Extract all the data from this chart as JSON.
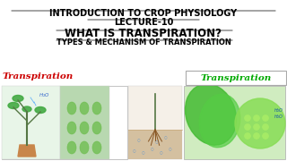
{
  "bg_color": "#ffffff",
  "title_line1": "INTRODUCTION TO CROP PHYSIOLOGY",
  "title_line2": "LECTURE-10",
  "title_line3": "WHAT IS TRANSPIRATION?",
  "title_line4": "TYPES & MECHANISM OF TRANSPIRATION",
  "left_label": "Transpiration",
  "right_label": "Transpiration",
  "left_label_color": "#cc0000",
  "right_label_color": "#00aa00",
  "title_color": "#000000",
  "underline_color": "#000000",
  "img_bg_left": "#e8f4e8",
  "img_bg_mid": "#f0e8d8",
  "img_bg_right": "#c8e8c8",
  "figsize": [
    3.2,
    1.8
  ],
  "dpi": 100
}
